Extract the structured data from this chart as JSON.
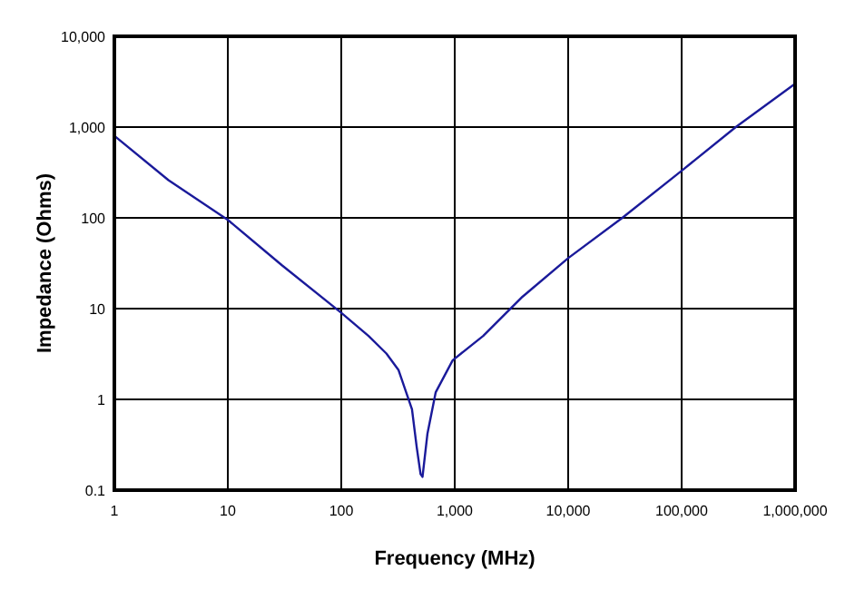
{
  "chart_data": {
    "type": "line",
    "xlabel": "Frequency (MHz)",
    "ylabel": "Impedance (Ohms)",
    "log": "xy",
    "grid": true,
    "xlim": [
      1,
      1000000
    ],
    "ylim": [
      0.1,
      10000
    ],
    "xticks": [
      1,
      10,
      100,
      {
        "value": 1000,
        "label": "1,000"
      },
      {
        "value": 10000,
        "label": "10,000"
      },
      {
        "value": 100000,
        "label": "100,000"
      },
      {
        "value": 1000000,
        "label": "1,000,000"
      }
    ],
    "yticks": [
      0.1,
      1,
      10,
      100,
      {
        "value": 1000,
        "label": "1,000"
      },
      {
        "value": 10000,
        "label": "10,000"
      }
    ],
    "series": [
      {
        "color": "#1a1a9a",
        "x": [
          1,
          3,
          10,
          30,
          100,
          174,
          250,
          320,
          420,
          462,
          500,
          520,
          575,
          680,
          960,
          1780,
          3950,
          10000,
          30000,
          100000,
          300000,
          1000000
        ],
        "values": [
          800,
          260,
          95,
          30,
          9,
          5,
          3.2,
          2.1,
          0.78,
          0.3,
          0.15,
          0.14,
          0.42,
          1.2,
          2.7,
          5,
          13.5,
          36,
          100,
          330,
          1000,
          3000
        ]
      }
    ]
  }
}
